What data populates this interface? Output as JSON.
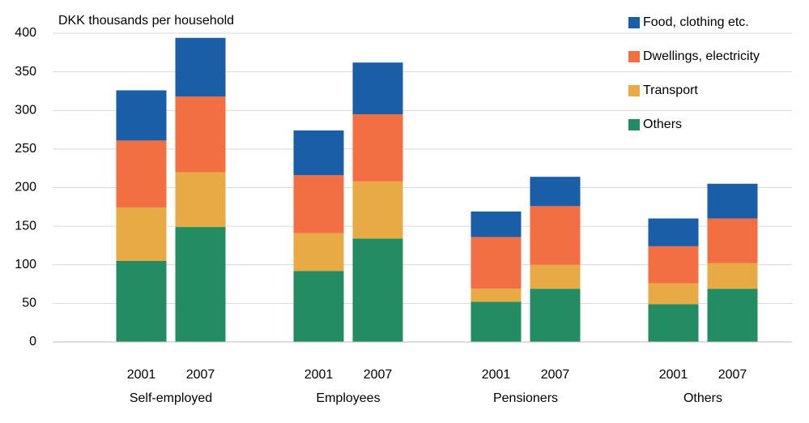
{
  "chart_data": {
    "type": "stacked_bar",
    "y_label": "DKK thousands  per household",
    "groups": [
      "Self-employed",
      "Employees",
      "Pensioners",
      "Others"
    ],
    "categories": [
      "2001",
      "2007",
      "2001",
      "2007",
      "2001",
      "2007",
      "2001",
      "2007"
    ],
    "series": [
      {
        "name": "Food, clothing  etc.",
        "color": "#1a5ea8",
        "values": [
          65,
          76,
          58,
          67,
          33,
          38,
          36,
          45
        ]
      },
      {
        "name": "Dwellings,  electricity",
        "color": "#f26f43",
        "values": [
          87,
          98,
          75,
          87,
          67,
          76,
          48,
          58
        ]
      },
      {
        "name": "Transport",
        "color": "#e8aa44",
        "values": [
          69,
          71,
          49,
          74,
          17,
          31,
          27,
          33
        ]
      },
      {
        "name": "Others",
        "color": "#238c63",
        "values": [
          105,
          149,
          92,
          134,
          52,
          69,
          49,
          69
        ]
      }
    ],
    "ylim": [
      0,
      400
    ],
    "yticks": [
      0,
      50,
      100,
      150,
      200,
      250,
      300,
      350,
      400
    ],
    "grid": true
  }
}
